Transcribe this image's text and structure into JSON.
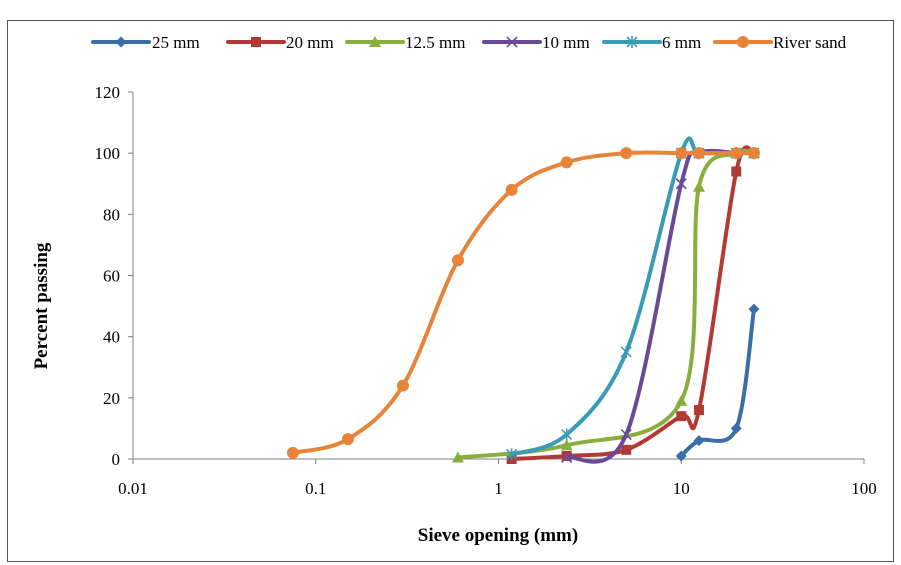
{
  "chart_data": {
    "type": "scatter",
    "title": "",
    "xlabel": "Sieve opening (mm)",
    "ylabel": "Percent passing",
    "x_scale": "log",
    "xlim": [
      0.01,
      100
    ],
    "ylim": [
      0,
      120
    ],
    "x_ticks": [
      {
        "value": 0.01,
        "label": "0.01"
      },
      {
        "value": 0.1,
        "label": "0.1"
      },
      {
        "value": 1,
        "label": "1"
      },
      {
        "value": 10,
        "label": "10"
      },
      {
        "value": 100,
        "label": "100"
      }
    ],
    "y_ticks": [
      {
        "value": 0,
        "label": "0"
      },
      {
        "value": 20,
        "label": "20"
      },
      {
        "value": 40,
        "label": "40"
      },
      {
        "value": 60,
        "label": "60"
      },
      {
        "value": 80,
        "label": "80"
      },
      {
        "value": 100,
        "label": "100"
      },
      {
        "value": 120,
        "label": "120"
      }
    ],
    "grid": false,
    "legend_position": "top",
    "series": [
      {
        "name": "25 mm",
        "color": "#3a6ea8",
        "marker": "diamond",
        "x": [
          10,
          12.5,
          20,
          25
        ],
        "y": [
          1,
          6,
          10,
          49
        ]
      },
      {
        "name": "20 mm",
        "color": "#b23a36",
        "marker": "square",
        "x": [
          1.18,
          2.36,
          5,
          10,
          12.5,
          20,
          25
        ],
        "y": [
          0,
          1,
          3,
          14,
          16,
          94,
          100
        ]
      },
      {
        "name": "12.5 mm",
        "color": "#8aae3e",
        "marker": "triangle",
        "x": [
          0.6,
          2.36,
          10,
          12.5,
          20,
          25
        ],
        "y": [
          0.5,
          4.5,
          19,
          89,
          100,
          100
        ]
      },
      {
        "name": "10 mm",
        "color": "#6a4a96",
        "marker": "x",
        "x": [
          2.36,
          5,
          10,
          12.5,
          20
        ],
        "y": [
          0.5,
          8,
          90,
          100,
          100
        ]
      },
      {
        "name": "6 mm",
        "color": "#3a9cb4",
        "marker": "star",
        "x": [
          1.18,
          2.36,
          5,
          10,
          12.5,
          20,
          25
        ],
        "y": [
          1.5,
          8,
          35,
          100,
          100,
          100,
          100
        ]
      },
      {
        "name": "River sand",
        "color": "#e8843a",
        "marker": "circle",
        "x": [
          0.075,
          0.15,
          0.3,
          0.6,
          1.18,
          2.36,
          5,
          10,
          12.5,
          20,
          25
        ],
        "y": [
          2,
          6.5,
          24,
          65,
          88,
          97,
          100,
          100,
          100,
          100,
          100
        ]
      }
    ]
  }
}
